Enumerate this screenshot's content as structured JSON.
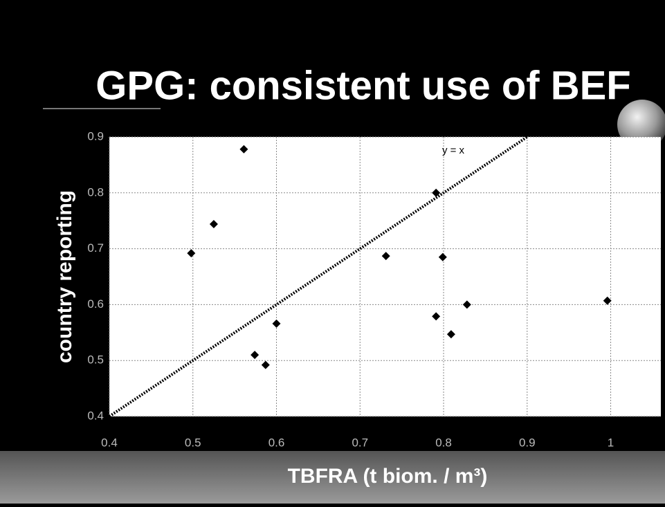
{
  "title": "GPG: consistent use of BEF",
  "chart_data": {
    "type": "scatter",
    "x_label": "TBFRA (t biom. / m³)",
    "y_label": "country reporting",
    "x": [
      0.561,
      0.498,
      0.525,
      0.791,
      0.799,
      0.731,
      0.828,
      0.996,
      0.6,
      0.791,
      0.809,
      0.574,
      0.587
    ],
    "values": [
      0.878,
      0.692,
      0.744,
      0.8,
      0.685,
      0.687,
      0.6,
      0.607,
      0.566,
      0.579,
      0.547,
      0.51,
      0.492
    ],
    "color": "#000000",
    "xlim": [
      0.4,
      1.06
    ],
    "ylim": [
      0.4,
      0.9
    ],
    "xticks": [
      0.4,
      0.5,
      0.6,
      0.7,
      0.8,
      0.9,
      1
    ],
    "yticks": [
      0.4,
      0.5,
      0.6,
      0.7,
      0.8,
      0.9
    ],
    "grid": true,
    "reference_line": {
      "label": "y = x",
      "x": [
        0.4,
        0.9
      ],
      "y": [
        0.4,
        0.9
      ]
    }
  }
}
